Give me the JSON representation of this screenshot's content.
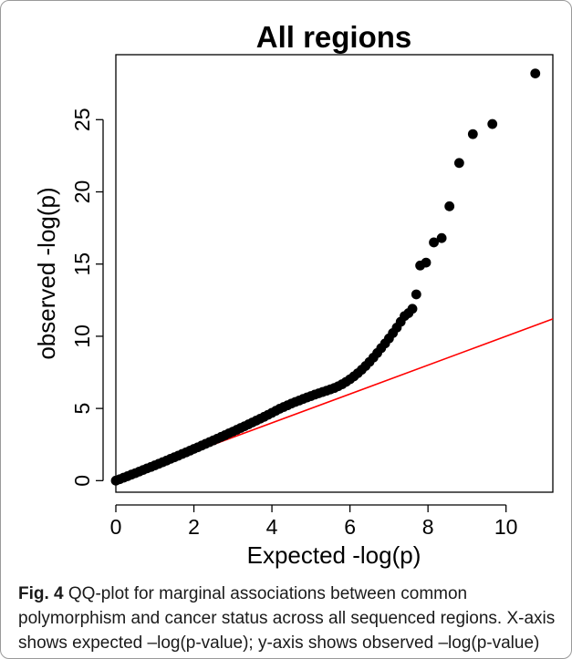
{
  "chart_data": {
    "type": "scatter",
    "title": "All regions",
    "xlabel": "Expected -log(p)",
    "ylabel": "observed -log(p)",
    "xlim": [
      0,
      11.2
    ],
    "ylim": [
      -0.8,
      29.5
    ],
    "xticks": [
      "0",
      "2",
      "4",
      "6",
      "8",
      "10"
    ],
    "yticks": [
      "0",
      "5",
      "10",
      "15",
      "20",
      "25"
    ],
    "grid": false,
    "reference_line": {
      "slope": 1,
      "intercept": 0,
      "color": "#ff0000"
    },
    "point_color": "#000000",
    "points": [
      [
        0.0,
        0.0
      ],
      [
        0.1,
        0.1
      ],
      [
        0.2,
        0.21
      ],
      [
        0.3,
        0.31
      ],
      [
        0.4,
        0.42
      ],
      [
        0.5,
        0.52
      ],
      [
        0.6,
        0.63
      ],
      [
        0.7,
        0.74
      ],
      [
        0.8,
        0.85
      ],
      [
        0.9,
        0.95
      ],
      [
        1.0,
        1.06
      ],
      [
        1.1,
        1.17
      ],
      [
        1.2,
        1.28
      ],
      [
        1.3,
        1.39
      ],
      [
        1.4,
        1.51
      ],
      [
        1.5,
        1.62
      ],
      [
        1.6,
        1.73
      ],
      [
        1.7,
        1.85
      ],
      [
        1.8,
        1.96
      ],
      [
        1.9,
        2.08
      ],
      [
        2.0,
        2.2
      ],
      [
        2.1,
        2.31
      ],
      [
        2.2,
        2.43
      ],
      [
        2.3,
        2.55
      ],
      [
        2.4,
        2.67
      ],
      [
        2.5,
        2.79
      ],
      [
        2.6,
        2.91
      ],
      [
        2.7,
        3.03
      ],
      [
        2.8,
        3.15
      ],
      [
        2.9,
        3.28
      ],
      [
        3.0,
        3.4
      ],
      [
        3.1,
        3.52
      ],
      [
        3.2,
        3.65
      ],
      [
        3.3,
        3.77
      ],
      [
        3.4,
        3.9
      ],
      [
        3.5,
        4.03
      ],
      [
        3.6,
        4.16
      ],
      [
        3.7,
        4.29
      ],
      [
        3.8,
        4.42
      ],
      [
        3.9,
        4.56
      ],
      [
        4.0,
        4.7
      ],
      [
        4.1,
        4.84
      ],
      [
        4.2,
        4.98
      ],
      [
        4.3,
        5.1
      ],
      [
        4.4,
        5.22
      ],
      [
        4.5,
        5.34
      ],
      [
        4.6,
        5.45
      ],
      [
        4.7,
        5.55
      ],
      [
        4.8,
        5.66
      ],
      [
        4.9,
        5.76
      ],
      [
        5.0,
        5.86
      ],
      [
        5.1,
        5.96
      ],
      [
        5.2,
        6.05
      ],
      [
        5.3,
        6.14
      ],
      [
        5.4,
        6.23
      ],
      [
        5.5,
        6.32
      ],
      [
        5.6,
        6.42
      ],
      [
        5.7,
        6.54
      ],
      [
        5.8,
        6.68
      ],
      [
        5.9,
        6.84
      ],
      [
        6.0,
        7.02
      ],
      [
        6.1,
        7.22
      ],
      [
        6.2,
        7.44
      ],
      [
        6.3,
        7.68
      ],
      [
        6.4,
        7.94
      ],
      [
        6.5,
        8.22
      ],
      [
        6.6,
        8.52
      ],
      [
        6.7,
        8.84
      ],
      [
        6.8,
        9.18
      ],
      [
        6.9,
        9.5
      ],
      [
        7.0,
        9.85
      ],
      [
        7.1,
        10.22
      ],
      [
        7.2,
        10.6
      ],
      [
        7.3,
        11.0
      ],
      [
        7.4,
        11.4
      ],
      [
        7.5,
        11.6
      ],
      [
        7.6,
        11.9
      ],
      [
        7.7,
        12.9
      ],
      [
        7.8,
        14.9
      ],
      [
        7.95,
        15.1
      ],
      [
        8.15,
        16.5
      ],
      [
        8.35,
        16.8
      ],
      [
        8.55,
        19.0
      ],
      [
        8.8,
        22.0
      ],
      [
        9.15,
        24.0
      ],
      [
        9.65,
        24.7
      ],
      [
        10.75,
        28.2
      ]
    ]
  },
  "caption": {
    "label": "Fig. 4",
    "text": "QQ-plot for marginal associations between common polymorphism and cancer status across all sequenced regions. X-axis shows expected –log(p-value); y-axis shows observed –log(p-value)"
  }
}
